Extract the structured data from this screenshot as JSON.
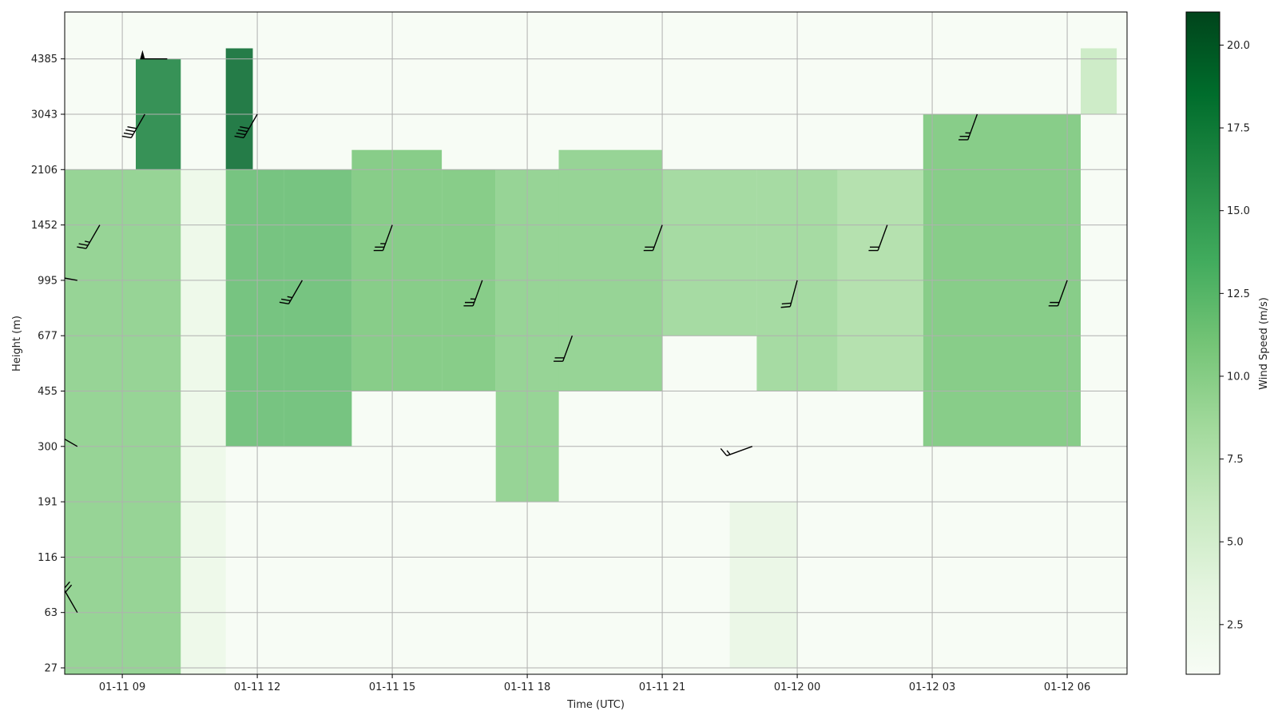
{
  "chart_data": {
    "type": "heatmap",
    "subtype": "wind-profile-with-barbs",
    "xlabel": "Time (UTC)",
    "ylabel": "Height (m)",
    "x_ticks": [
      "01-11 09",
      "01-11 12",
      "01-11 15",
      "01-11 18",
      "01-11 21",
      "01-12 00",
      "01-12 03",
      "01-12 06"
    ],
    "y_ticks": [
      "27",
      "63",
      "116",
      "191",
      "300",
      "455",
      "677",
      "995",
      "1452",
      "2106",
      "3043",
      "4385"
    ],
    "xlim": [
      "01-11 07:43",
      "01-12 07:20"
    ],
    "y_scale": "categorical-levels",
    "grid": true,
    "colorbar": {
      "label": "Wind Speed (m/s)",
      "range": [
        1.0,
        21.0
      ],
      "ticks": [
        "2.5",
        "5.0",
        "7.5",
        "10.0",
        "12.5",
        "15.0",
        "17.5",
        "20.0"
      ],
      "colormap": "Greens",
      "color_stops": [
        "#f7fcf5",
        "#e5f5e0",
        "#c7e9c0",
        "#a1d99b",
        "#74c476",
        "#41ab5d",
        "#238b45",
        "#006d2c",
        "#00441b"
      ]
    },
    "speed_regions": [
      {
        "t0": 7.7,
        "t1": 10.3,
        "h0": 0.55,
        "h1": 2106,
        "speed": 10
      },
      {
        "t0": 9.3,
        "t1": 10.3,
        "h0": 2106,
        "h1": 4385,
        "speed": 17
      },
      {
        "t0": 10.3,
        "t1": 11.3,
        "h0": 0.6,
        "h1": 2106,
        "speed": 2.5
      },
      {
        "t0": 11.3,
        "t1": 11.9,
        "h0": 2106,
        "h1": 4700,
        "speed": 19
      },
      {
        "t0": 11.3,
        "t1": 12.6,
        "h0": 300,
        "h1": 2106,
        "speed": 12
      },
      {
        "t0": 12.6,
        "t1": 14.1,
        "h0": 300,
        "h1": 2106,
        "speed": 12
      },
      {
        "t0": 14.1,
        "t1": 16.1,
        "h0": 455,
        "h1": 2400,
        "speed": 11
      },
      {
        "t0": 16.1,
        "t1": 17.3,
        "h0": 455,
        "h1": 2106,
        "speed": 11
      },
      {
        "t0": 17.3,
        "t1": 18.7,
        "h0": 191,
        "h1": 2106,
        "speed": 10
      },
      {
        "t0": 18.7,
        "t1": 21.0,
        "h0": 455,
        "h1": 2400,
        "speed": 10
      },
      {
        "t0": 21.0,
        "t1": 23.1,
        "h0": 677,
        "h1": 2106,
        "speed": 9
      },
      {
        "t0": 23.1,
        "t1": 24.9,
        "h0": 455,
        "h1": 2106,
        "speed": 9
      },
      {
        "t0": 24.9,
        "t1": 26.8,
        "h0": 455,
        "h1": 2106,
        "speed": 8
      },
      {
        "t0": 26.8,
        "t1": 30.3,
        "h0": 300,
        "h1": 3043,
        "speed": 11
      },
      {
        "t0": 30.3,
        "t1": 31.1,
        "h0": 3043,
        "h1": 4700,
        "speed": 6
      },
      {
        "t0": 22.5,
        "t1": 24.0,
        "h0": 27,
        "h1": 191,
        "speed": 3
      }
    ],
    "wind_barbs": [
      {
        "t": 8.0,
        "h": 63,
        "speed": 10,
        "dir": 330
      },
      {
        "t": 8.0,
        "h": 300,
        "speed": 10,
        "dir": 300
      },
      {
        "t": 8.0,
        "h": 995,
        "speed": 12,
        "dir": 280
      },
      {
        "t": 8.5,
        "h": 1452,
        "speed": 12,
        "dir": 210
      },
      {
        "t": 9.5,
        "h": 3043,
        "speed": 20,
        "dir": 210
      },
      {
        "t": 10.0,
        "h": 4385,
        "speed": 25,
        "dir": 270
      },
      {
        "t": 12.0,
        "h": 3043,
        "speed": 20,
        "dir": 210
      },
      {
        "t": 13.0,
        "h": 995,
        "speed": 12,
        "dir": 210
      },
      {
        "t": 15.0,
        "h": 1452,
        "speed": 12,
        "dir": 200
      },
      {
        "t": 17.0,
        "h": 995,
        "speed": 12,
        "dir": 200
      },
      {
        "t": 19.0,
        "h": 677,
        "speed": 10,
        "dir": 200
      },
      {
        "t": 21.0,
        "h": 1452,
        "speed": 10,
        "dir": 200
      },
      {
        "t": 23.0,
        "h": 300,
        "speed": 7,
        "dir": 250
      },
      {
        "t": 24.0,
        "h": 995,
        "speed": 10,
        "dir": 195
      },
      {
        "t": 26.0,
        "h": 1452,
        "speed": 10,
        "dir": 200
      },
      {
        "t": 28.0,
        "h": 3043,
        "speed": 12,
        "dir": 200
      },
      {
        "t": 30.0,
        "h": 995,
        "speed": 10,
        "dir": 200
      }
    ]
  }
}
